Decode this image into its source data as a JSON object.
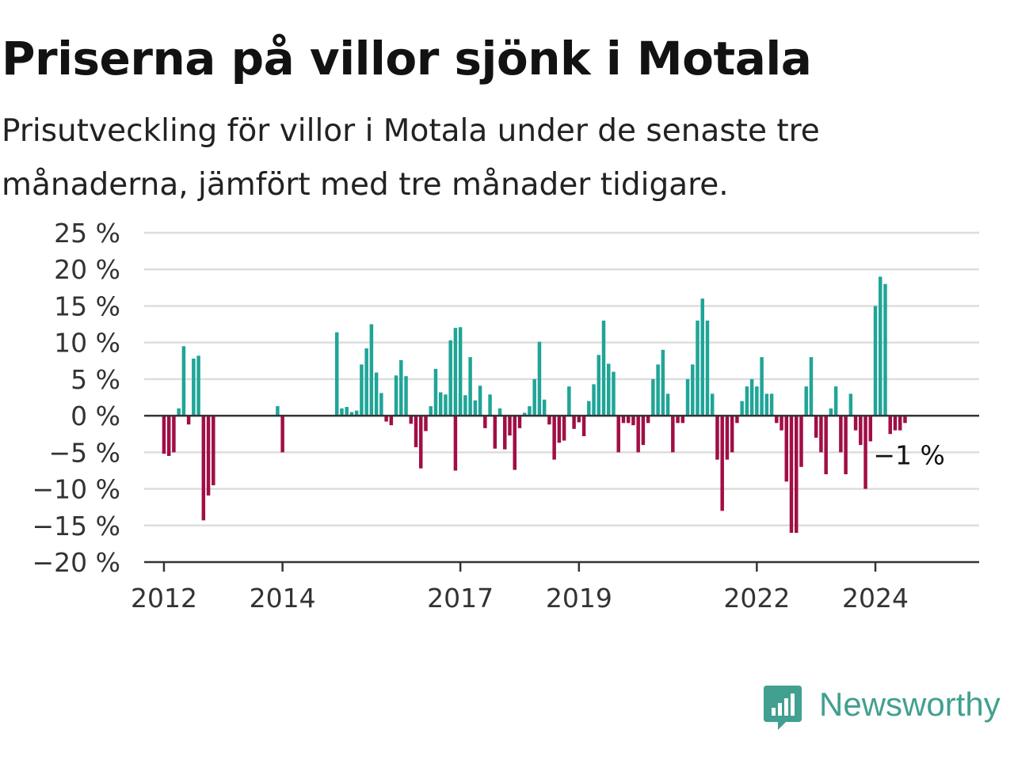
{
  "title": "Priserna på villor sjönk i Motala",
  "subtitle": "Prisutveckling för villor i Motala under de senaste tre månaderna, jämfört med tre månader tidigare.",
  "brand": {
    "name": "Newsworthy",
    "icon": "newsworthy-logo-icon"
  },
  "colors": {
    "positive": "#1fa598",
    "negative": "#a10e45",
    "grid": "#dddddd",
    "axis": "#333333"
  },
  "chart_data": {
    "type": "bar",
    "title": "Priserna på villor sjönk i Motala",
    "subtitle": "Prisutveckling för villor i Motala under de senaste tre månaderna, jämfört med tre månader tidigare.",
    "xlabel": "",
    "ylabel": "",
    "ylim": [
      -20,
      25
    ],
    "xlim": [
      "2011-09",
      "2025-10"
    ],
    "y_ticks": [
      25,
      20,
      15,
      10,
      5,
      0,
      -5,
      -10,
      -15,
      -20
    ],
    "y_tick_labels": [
      "25 %",
      "20 %",
      "15 %",
      "10 %",
      "5 %",
      "0 %",
      "−5 %",
      "−10 %",
      "−15 %",
      "−20 %"
    ],
    "x_tick_labels": [
      {
        "label": "2012",
        "date": "2012-01"
      },
      {
        "label": "2014",
        "date": "2014-01"
      },
      {
        "label": "2017",
        "date": "2017-01"
      },
      {
        "label": "2019",
        "date": "2019-01"
      },
      {
        "label": "2022",
        "date": "2022-01"
      },
      {
        "label": "2024",
        "date": "2024-01"
      }
    ],
    "grid": true,
    "last_value_label": "−1 %",
    "points": [
      [
        "2012-01",
        -5.2
      ],
      [
        "2012-02",
        -5.5
      ],
      [
        "2012-03",
        -5
      ],
      [
        "2012-04",
        1
      ],
      [
        "2012-05",
        9.5
      ],
      [
        "2012-06",
        -1.2
      ],
      [
        "2012-07",
        7.8
      ],
      [
        "2012-08",
        8.2
      ],
      [
        "2012-09",
        -14.3
      ],
      [
        "2012-10",
        -10.9
      ],
      [
        "2012-11",
        -9.5
      ],
      [
        "2013-12",
        1.3
      ],
      [
        "2014-01",
        -5
      ],
      [
        "2014-12",
        11.4
      ],
      [
        "2015-01",
        1
      ],
      [
        "2015-02",
        1.2
      ],
      [
        "2015-03",
        0.5
      ],
      [
        "2015-04",
        0.7
      ],
      [
        "2015-05",
        7
      ],
      [
        "2015-06",
        9.2
      ],
      [
        "2015-07",
        12.5
      ],
      [
        "2015-08",
        5.9
      ],
      [
        "2015-09",
        3.1
      ],
      [
        "2015-10",
        -0.8
      ],
      [
        "2015-11",
        -1.3
      ],
      [
        "2015-12",
        5.5
      ],
      [
        "2016-01",
        7.6
      ],
      [
        "2016-02",
        5.4
      ],
      [
        "2016-03",
        -1.1
      ],
      [
        "2016-04",
        -4.3
      ],
      [
        "2016-05",
        -7.2
      ],
      [
        "2016-06",
        -2.1
      ],
      [
        "2016-07",
        1.3
      ],
      [
        "2016-08",
        6.4
      ],
      [
        "2016-09",
        3.2
      ],
      [
        "2016-10",
        2.9
      ],
      [
        "2016-11",
        10.3
      ],
      [
        "2016-12",
        12
      ],
      [
        "2017-01",
        12.1
      ],
      [
        "2016-12",
        -7.5
      ],
      [
        "2017-01",
        3
      ],
      [
        "2017-02",
        2.8
      ],
      [
        "2017-03",
        8
      ],
      [
        "2017-04",
        2.1
      ],
      [
        "2017-05",
        4.1
      ],
      [
        "2017-06",
        -1.7
      ],
      [
        "2017-07",
        2.9
      ],
      [
        "2017-08",
        -4.5
      ],
      [
        "2017-09",
        1
      ],
      [
        "2017-10",
        -4.6
      ],
      [
        "2017-11",
        -2.7
      ],
      [
        "2017-12",
        -7.4
      ],
      [
        "2018-01",
        -1.7
      ],
      [
        "2018-02",
        0.4
      ],
      [
        "2018-03",
        1.3
      ],
      [
        "2018-04",
        5
      ],
      [
        "2018-05",
        10.1
      ],
      [
        "2018-06",
        2.2
      ],
      [
        "2018-07",
        -1.2
      ],
      [
        "2018-08",
        -6
      ],
      [
        "2018-09",
        -3.7
      ],
      [
        "2018-10",
        -3.4
      ],
      [
        "2018-11",
        4
      ],
      [
        "2018-12",
        -1.8
      ],
      [
        "2019-01",
        -0.9
      ],
      [
        "2019-02",
        -2.8
      ],
      [
        "2019-03",
        2
      ],
      [
        "2019-04",
        4.3
      ],
      [
        "2019-05",
        8.3
      ],
      [
        "2019-06",
        13
      ],
      [
        "2019-07",
        7.1
      ],
      [
        "2019-08",
        6
      ],
      [
        "2019-09",
        -5
      ],
      [
        "2019-10",
        -1
      ],
      [
        "2019-11",
        -1
      ],
      [
        "2019-12",
        -1.3
      ],
      [
        "2020-01",
        -5
      ],
      [
        "2020-02",
        -4
      ],
      [
        "2020-03",
        -1
      ],
      [
        "2020-04",
        5
      ],
      [
        "2020-05",
        7
      ],
      [
        "2020-06",
        9
      ],
      [
        "2020-07",
        3
      ],
      [
        "2020-08",
        -5
      ],
      [
        "2020-09",
        -1
      ],
      [
        "2020-10",
        -1
      ],
      [
        "2020-11",
        5
      ],
      [
        "2020-12",
        7
      ],
      [
        "2021-01",
        13
      ],
      [
        "2021-02",
        16
      ],
      [
        "2021-03",
        13
      ],
      [
        "2021-04",
        3
      ],
      [
        "2021-05",
        -6
      ],
      [
        "2021-06",
        -13
      ],
      [
        "2021-07",
        -6
      ],
      [
        "2021-08",
        -5
      ],
      [
        "2021-09",
        -1
      ],
      [
        "2021-10",
        2
      ],
      [
        "2021-11",
        4
      ],
      [
        "2021-12",
        5
      ],
      [
        "2022-01",
        4
      ],
      [
        "2022-02",
        8
      ],
      [
        "2022-03",
        3
      ],
      [
        "2022-04",
        3
      ],
      [
        "2022-05",
        -1
      ],
      [
        "2022-06",
        -2
      ],
      [
        "2022-07",
        -9
      ],
      [
        "2022-08",
        -16
      ],
      [
        "2022-09",
        -16
      ],
      [
        "2022-10",
        -7
      ],
      [
        "2022-11",
        4
      ],
      [
        "2022-12",
        8
      ],
      [
        "2023-01",
        -3
      ],
      [
        "2023-02",
        -5
      ],
      [
        "2023-03",
        -8
      ],
      [
        "2023-04",
        1
      ],
      [
        "2023-05",
        4
      ],
      [
        "2023-06",
        -5
      ],
      [
        "2023-07",
        -8
      ],
      [
        "2023-08",
        3
      ],
      [
        "2023-09",
        -2
      ],
      [
        "2023-10",
        -4
      ],
      [
        "2023-11",
        -10
      ],
      [
        "2023-12",
        -3.5
      ],
      [
        "2024-01",
        15
      ],
      [
        "2024-02",
        19
      ],
      [
        "2024-03",
        18
      ],
      [
        "2024-04",
        -2.5
      ],
      [
        "2024-05",
        -2
      ],
      [
        "2024-06",
        -2
      ],
      [
        "2024-07",
        -1
      ]
    ]
  }
}
